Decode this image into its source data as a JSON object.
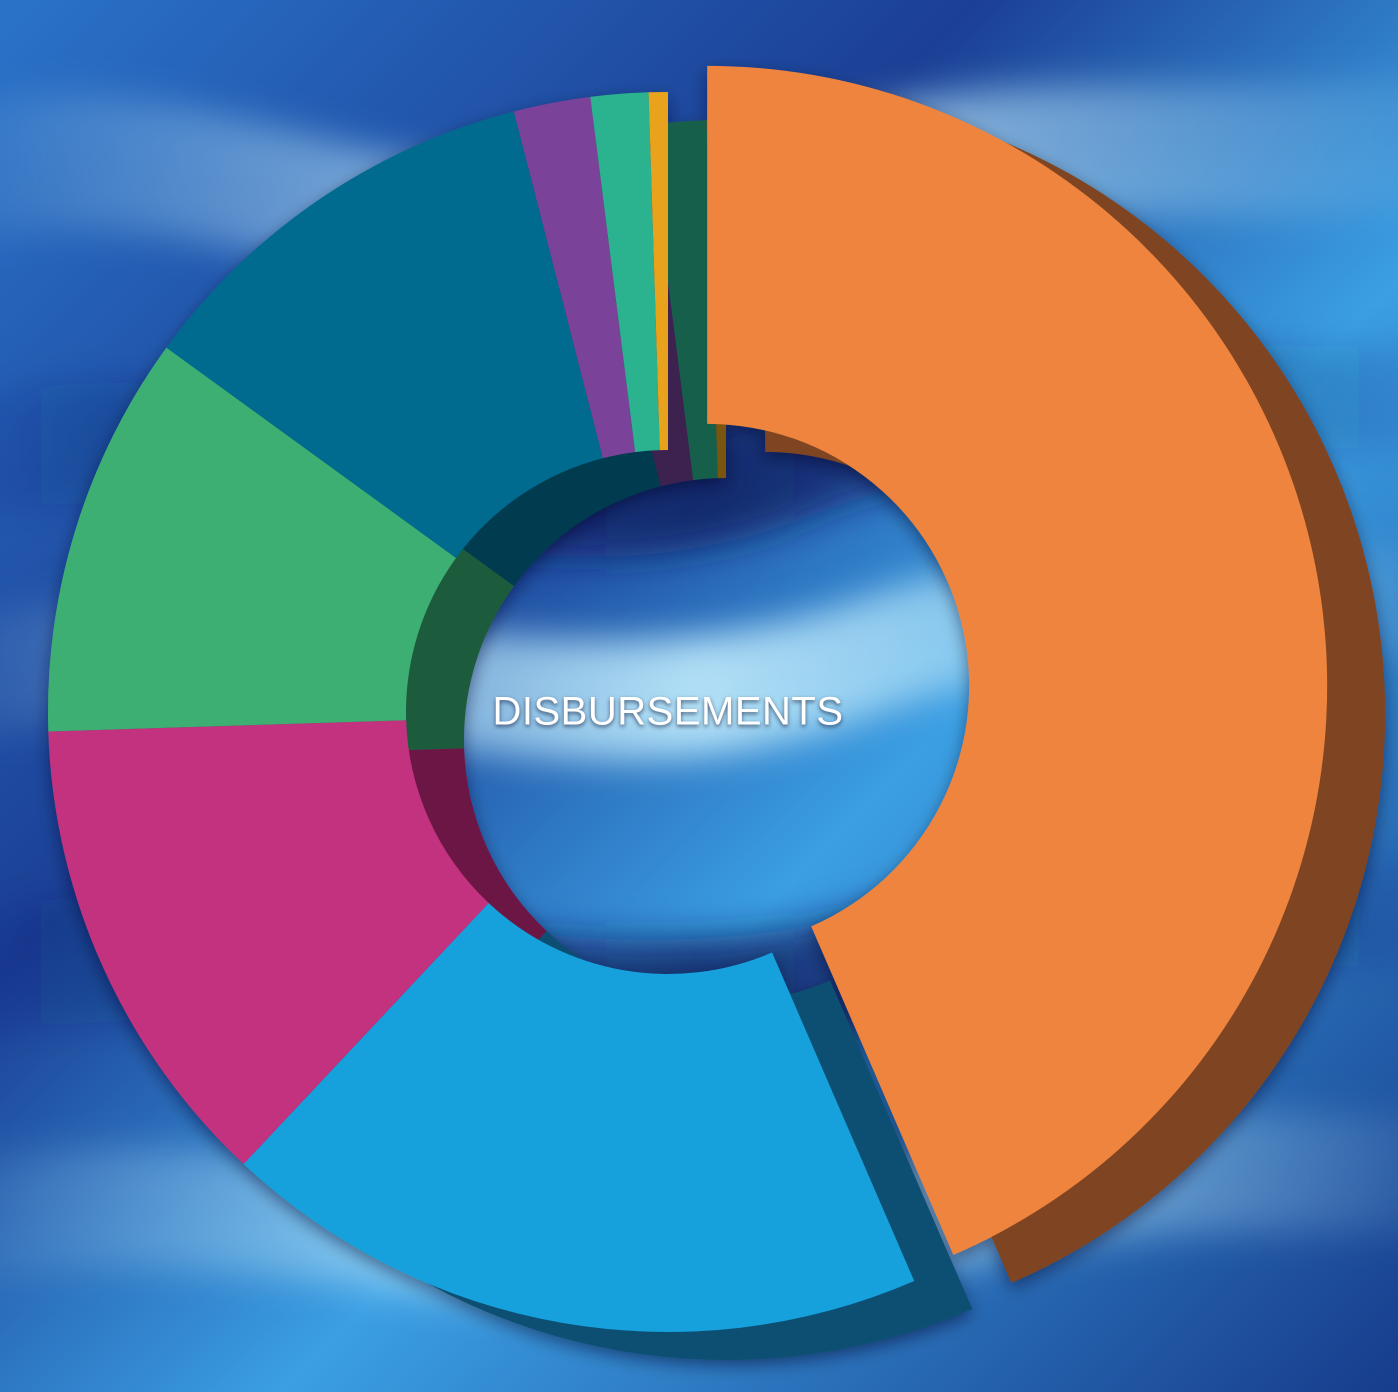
{
  "chart_data": {
    "type": "pie",
    "style": "3d-donut-exploded",
    "center_label": "DISBURSEMENTS",
    "title": "",
    "legend": "none",
    "slices": [
      {
        "value": 43.5,
        "color": "#ee843e",
        "side_color": "#7f4420",
        "exploded": true
      },
      {
        "value": 18.5,
        "color": "#14a0dc",
        "side_color": "#0b4f72",
        "exploded": false
      },
      {
        "value": 12.5,
        "color": "#c3307e",
        "side_color": "#6c1844",
        "exploded": false
      },
      {
        "value": 10.5,
        "color": "#3eaf73",
        "side_color": "#1f5c3e",
        "exploded": false
      },
      {
        "value": 11.0,
        "color": "#046a8f",
        "side_color": "#033b50",
        "exploded": false
      },
      {
        "value": 2.0,
        "color": "#7a4298",
        "side_color": "#3e2150",
        "exploded": false
      },
      {
        "value": 1.5,
        "color": "#2cb38e",
        "side_color": "#17604c",
        "exploded": false
      },
      {
        "value": 0.5,
        "color": "#e9a21f",
        "side_color": "#7a5410",
        "exploded": false
      }
    ]
  },
  "background": {
    "colors": [
      "#0f2a78",
      "#1c58b8",
      "#3aa8e6",
      "#8fdcff"
    ]
  }
}
